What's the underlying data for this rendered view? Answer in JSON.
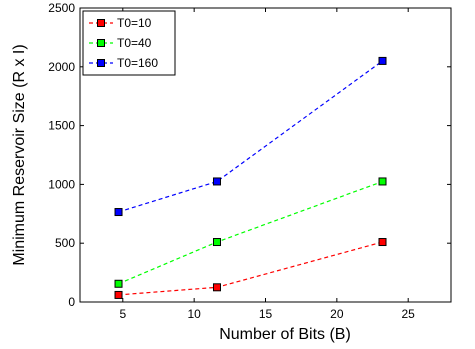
{
  "chart_data": {
    "type": "line",
    "xlabel": "Number of Bits (B)",
    "ylabel": "Minimum Reservoir Size (R x I)",
    "xlim": [
      2,
      28
    ],
    "ylim": [
      0,
      2500
    ],
    "xticks": [
      5,
      10,
      15,
      20,
      25
    ],
    "yticks": [
      0,
      500,
      1000,
      1500,
      2000,
      2500
    ],
    "grid": false,
    "legend_position": "top-left",
    "x": [
      4.7,
      11.6,
      23.2
    ],
    "series": [
      {
        "name": "T0=10",
        "values": [
          60,
          125,
          510
        ],
        "color": "#ff0000",
        "marker": "square"
      },
      {
        "name": "T0=40",
        "values": [
          155,
          510,
          1025
        ],
        "color": "#00ff00",
        "marker": "square"
      },
      {
        "name": "T0=160",
        "values": [
          765,
          1025,
          2050
        ],
        "color": "#0000ff",
        "marker": "square"
      }
    ]
  }
}
